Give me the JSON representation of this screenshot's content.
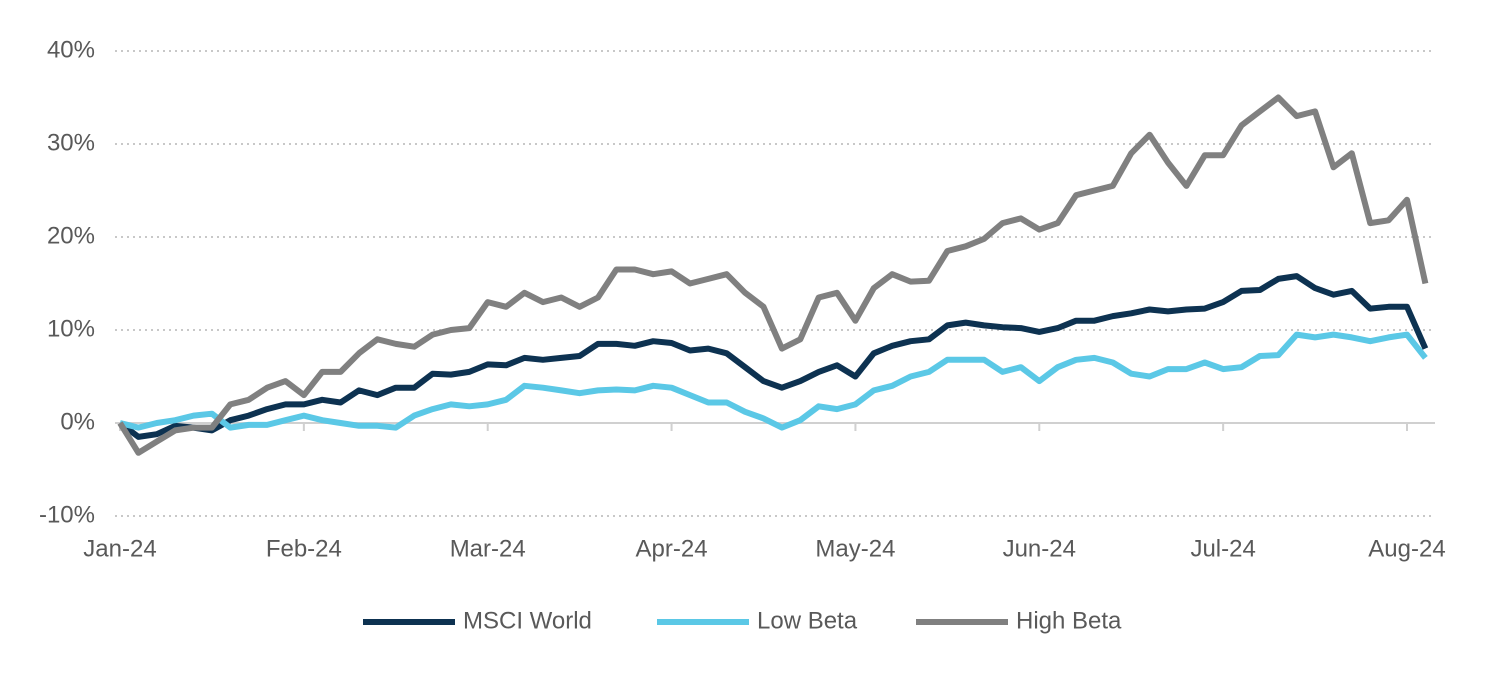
{
  "chart_data": {
    "type": "line",
    "categories": [
      "Jan-24",
      null,
      null,
      null,
      null,
      null,
      null,
      null,
      null,
      null,
      "Feb-24",
      null,
      null,
      null,
      null,
      null,
      null,
      null,
      null,
      null,
      "Mar-24",
      null,
      null,
      null,
      null,
      null,
      null,
      null,
      null,
      null,
      "Apr-24",
      null,
      null,
      null,
      null,
      null,
      null,
      null,
      null,
      null,
      "May-24",
      null,
      null,
      null,
      null,
      null,
      null,
      null,
      null,
      null,
      "Jun-24",
      null,
      null,
      null,
      null,
      null,
      null,
      null,
      null,
      null,
      "Jul-24",
      null,
      null,
      null,
      null,
      null,
      null,
      null,
      null,
      null,
      "Aug-24",
      null
    ],
    "series": [
      {
        "name": "MSCI World",
        "color": "#0d3251",
        "values": [
          0,
          -1.5,
          -1.2,
          -0.3,
          -0.5,
          -0.8,
          0.3,
          0.8,
          1.5,
          2.0,
          2.0,
          2.5,
          2.2,
          3.5,
          3.0,
          3.8,
          3.8,
          5.3,
          5.2,
          5.5,
          6.3,
          6.2,
          7.0,
          6.8,
          7.0,
          7.2,
          8.5,
          8.5,
          8.3,
          8.8,
          8.6,
          7.8,
          8.0,
          7.5,
          6.0,
          4.5,
          3.8,
          4.5,
          5.5,
          6.2,
          5.0,
          7.5,
          8.3,
          8.8,
          9.0,
          10.5,
          10.8,
          10.5,
          10.3,
          10.2,
          9.8,
          10.2,
          11.0,
          11.0,
          11.5,
          11.8,
          12.2,
          12.0,
          12.2,
          12.3,
          13.0,
          14.2,
          14.3,
          15.5,
          15.8,
          14.5,
          13.8,
          14.2,
          12.3,
          12.5,
          12.5,
          8.0
        ]
      },
      {
        "name": "Low Beta",
        "color": "#5bc8e6",
        "values": [
          0,
          -0.5,
          0,
          0.3,
          0.8,
          1.0,
          -0.5,
          -0.2,
          -0.2,
          0.3,
          0.8,
          0.3,
          0,
          -0.3,
          -0.3,
          -0.5,
          0.8,
          1.5,
          2.0,
          1.8,
          2.0,
          2.5,
          4.0,
          3.8,
          3.5,
          3.2,
          3.5,
          3.6,
          3.5,
          4.0,
          3.8,
          3.0,
          2.2,
          2.2,
          1.2,
          0.5,
          -0.5,
          0.3,
          1.8,
          1.5,
          2.0,
          3.5,
          4.0,
          5.0,
          5.5,
          6.8,
          6.8,
          6.8,
          5.5,
          6.0,
          4.5,
          6.0,
          6.8,
          7.0,
          6.5,
          5.3,
          5.0,
          5.8,
          5.8,
          6.5,
          5.8,
          6.0,
          7.2,
          7.3,
          9.5,
          9.2,
          9.5,
          9.2,
          8.8,
          9.2,
          9.5,
          7.0
        ]
      },
      {
        "name": "High Beta",
        "color": "#808080",
        "values": [
          0,
          -3.2,
          -2.0,
          -0.8,
          -0.5,
          -0.5,
          2.0,
          2.5,
          3.8,
          4.5,
          3.0,
          5.5,
          5.5,
          7.5,
          9.0,
          8.5,
          8.2,
          9.5,
          10,
          10.2,
          13,
          12.5,
          14,
          13,
          13.5,
          12.5,
          13.5,
          16.5,
          16.5,
          16,
          16.3,
          15,
          15.5,
          16,
          14,
          12.5,
          8,
          9,
          13.5,
          14,
          11,
          14.5,
          16,
          15.2,
          15.3,
          18.5,
          19,
          19.8,
          21.5,
          22,
          20.8,
          21.5,
          24.5,
          25,
          25.5,
          29,
          31,
          28,
          25.5,
          28.8,
          28.8,
          32,
          33.5,
          35,
          33,
          33.5,
          27.5,
          29,
          21.5,
          21.8,
          24,
          15
        ]
      }
    ],
    "ylim": [
      -10,
      40
    ],
    "yticks": [
      {
        "value": -10,
        "label": "-10%"
      },
      {
        "value": 0,
        "label": "0%"
      },
      {
        "value": 10,
        "label": "10%"
      },
      {
        "value": 20,
        "label": "20%"
      },
      {
        "value": 30,
        "label": "30%"
      },
      {
        "value": 40,
        "label": "40%"
      }
    ],
    "grid": true,
    "legend": "bottom"
  }
}
